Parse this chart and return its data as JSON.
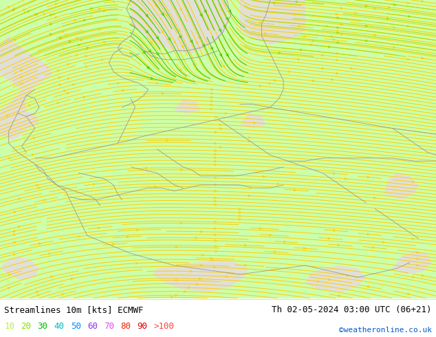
{
  "title_left": "Streamlines 10m [kts] ECMWF",
  "title_right": "Th 02-05-2024 03:00 UTC (06+21)",
  "credit": "©weatheronline.co.uk",
  "bg_color": "#ffffff",
  "map_bg_green": "#ccffaa",
  "map_bg_gray": "#e0e0d8",
  "fig_width": 6.34,
  "fig_height": 4.9,
  "dpi": 100,
  "title_fontsize": 9,
  "legend_fontsize": 9,
  "credit_fontsize": 8,
  "legend_colors_list": [
    {
      "label": "10",
      "color": "#bbee44"
    },
    {
      "label": "20",
      "color": "#88dd00"
    },
    {
      "label": "30",
      "color": "#00bb00"
    },
    {
      "label": "40",
      "color": "#00bbbb"
    },
    {
      "label": "50",
      "color": "#0088ff"
    },
    {
      "label": "60",
      "color": "#8833ee"
    },
    {
      "label": "70",
      "color": "#ee44ee"
    },
    {
      "label": "80",
      "color": "#ee2200"
    },
    {
      "label": "90",
      "color": "#dd0000"
    },
    {
      "label": ">100",
      "color": "#ff4444"
    }
  ],
  "streamline_color_yellow": "#ffcc00",
  "streamline_color_green": "#44cc00",
  "streamline_color_lime": "#aadd00",
  "border_color": "#999999",
  "border_lw": 0.6
}
